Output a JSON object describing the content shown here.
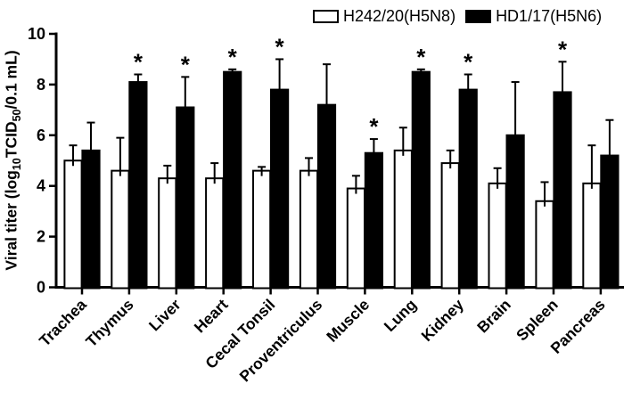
{
  "figure": {
    "background": "#ffffff",
    "axis_color": "#000000",
    "significance_note_symbol": "*"
  },
  "chart_data": {
    "type": "bar",
    "title": "",
    "xlabel": "",
    "ylabel_plain": "Viral titer (log10TCID50/0.1 mL)",
    "ylabel_parts": [
      {
        "text": "Viral titer (log",
        "sub": false
      },
      {
        "text": "10",
        "sub": true
      },
      {
        "text": "TCID",
        "sub": false
      },
      {
        "text": "50",
        "sub": true
      },
      {
        "text": "/0.1 mL)",
        "sub": false
      }
    ],
    "ylim": [
      0,
      10
    ],
    "yticks": [
      0,
      2,
      4,
      6,
      8,
      10
    ],
    "grid": false,
    "legend_position": "top-right",
    "significance_symbol": "*",
    "categories": [
      "Trachea",
      "Thymus",
      "Liver",
      "Heart",
      "Cecal Tonsil",
      "Proventriculus",
      "Muscle",
      "Lung",
      "Kidney",
      "Brain",
      "Spleen",
      "Pancreas"
    ],
    "series": [
      {
        "name": "H242/20(H5N8)",
        "fill": "#ffffff",
        "stroke": "#000000",
        "values": [
          5.0,
          4.6,
          4.3,
          4.3,
          4.6,
          4.6,
          3.9,
          5.4,
          4.9,
          4.1,
          3.4,
          4.1
        ],
        "errors_up": [
          0.6,
          1.3,
          0.5,
          0.6,
          0.15,
          0.5,
          0.5,
          0.9,
          0.5,
          0.6,
          0.75,
          1.5
        ],
        "significance": [
          false,
          false,
          false,
          false,
          false,
          false,
          false,
          false,
          false,
          false,
          false,
          false
        ]
      },
      {
        "name": "HD1/17(H5N6)",
        "fill": "#000000",
        "stroke": "#000000",
        "values": [
          5.4,
          8.1,
          7.1,
          8.5,
          7.8,
          7.2,
          5.3,
          8.5,
          7.8,
          6.0,
          7.7,
          5.2
        ],
        "errors_up": [
          1.1,
          0.3,
          1.2,
          0.1,
          1.2,
          1.6,
          0.55,
          0.1,
          0.6,
          2.1,
          1.2,
          1.4
        ],
        "significance": [
          false,
          true,
          true,
          true,
          true,
          false,
          true,
          true,
          true,
          false,
          true,
          false
        ]
      }
    ]
  }
}
